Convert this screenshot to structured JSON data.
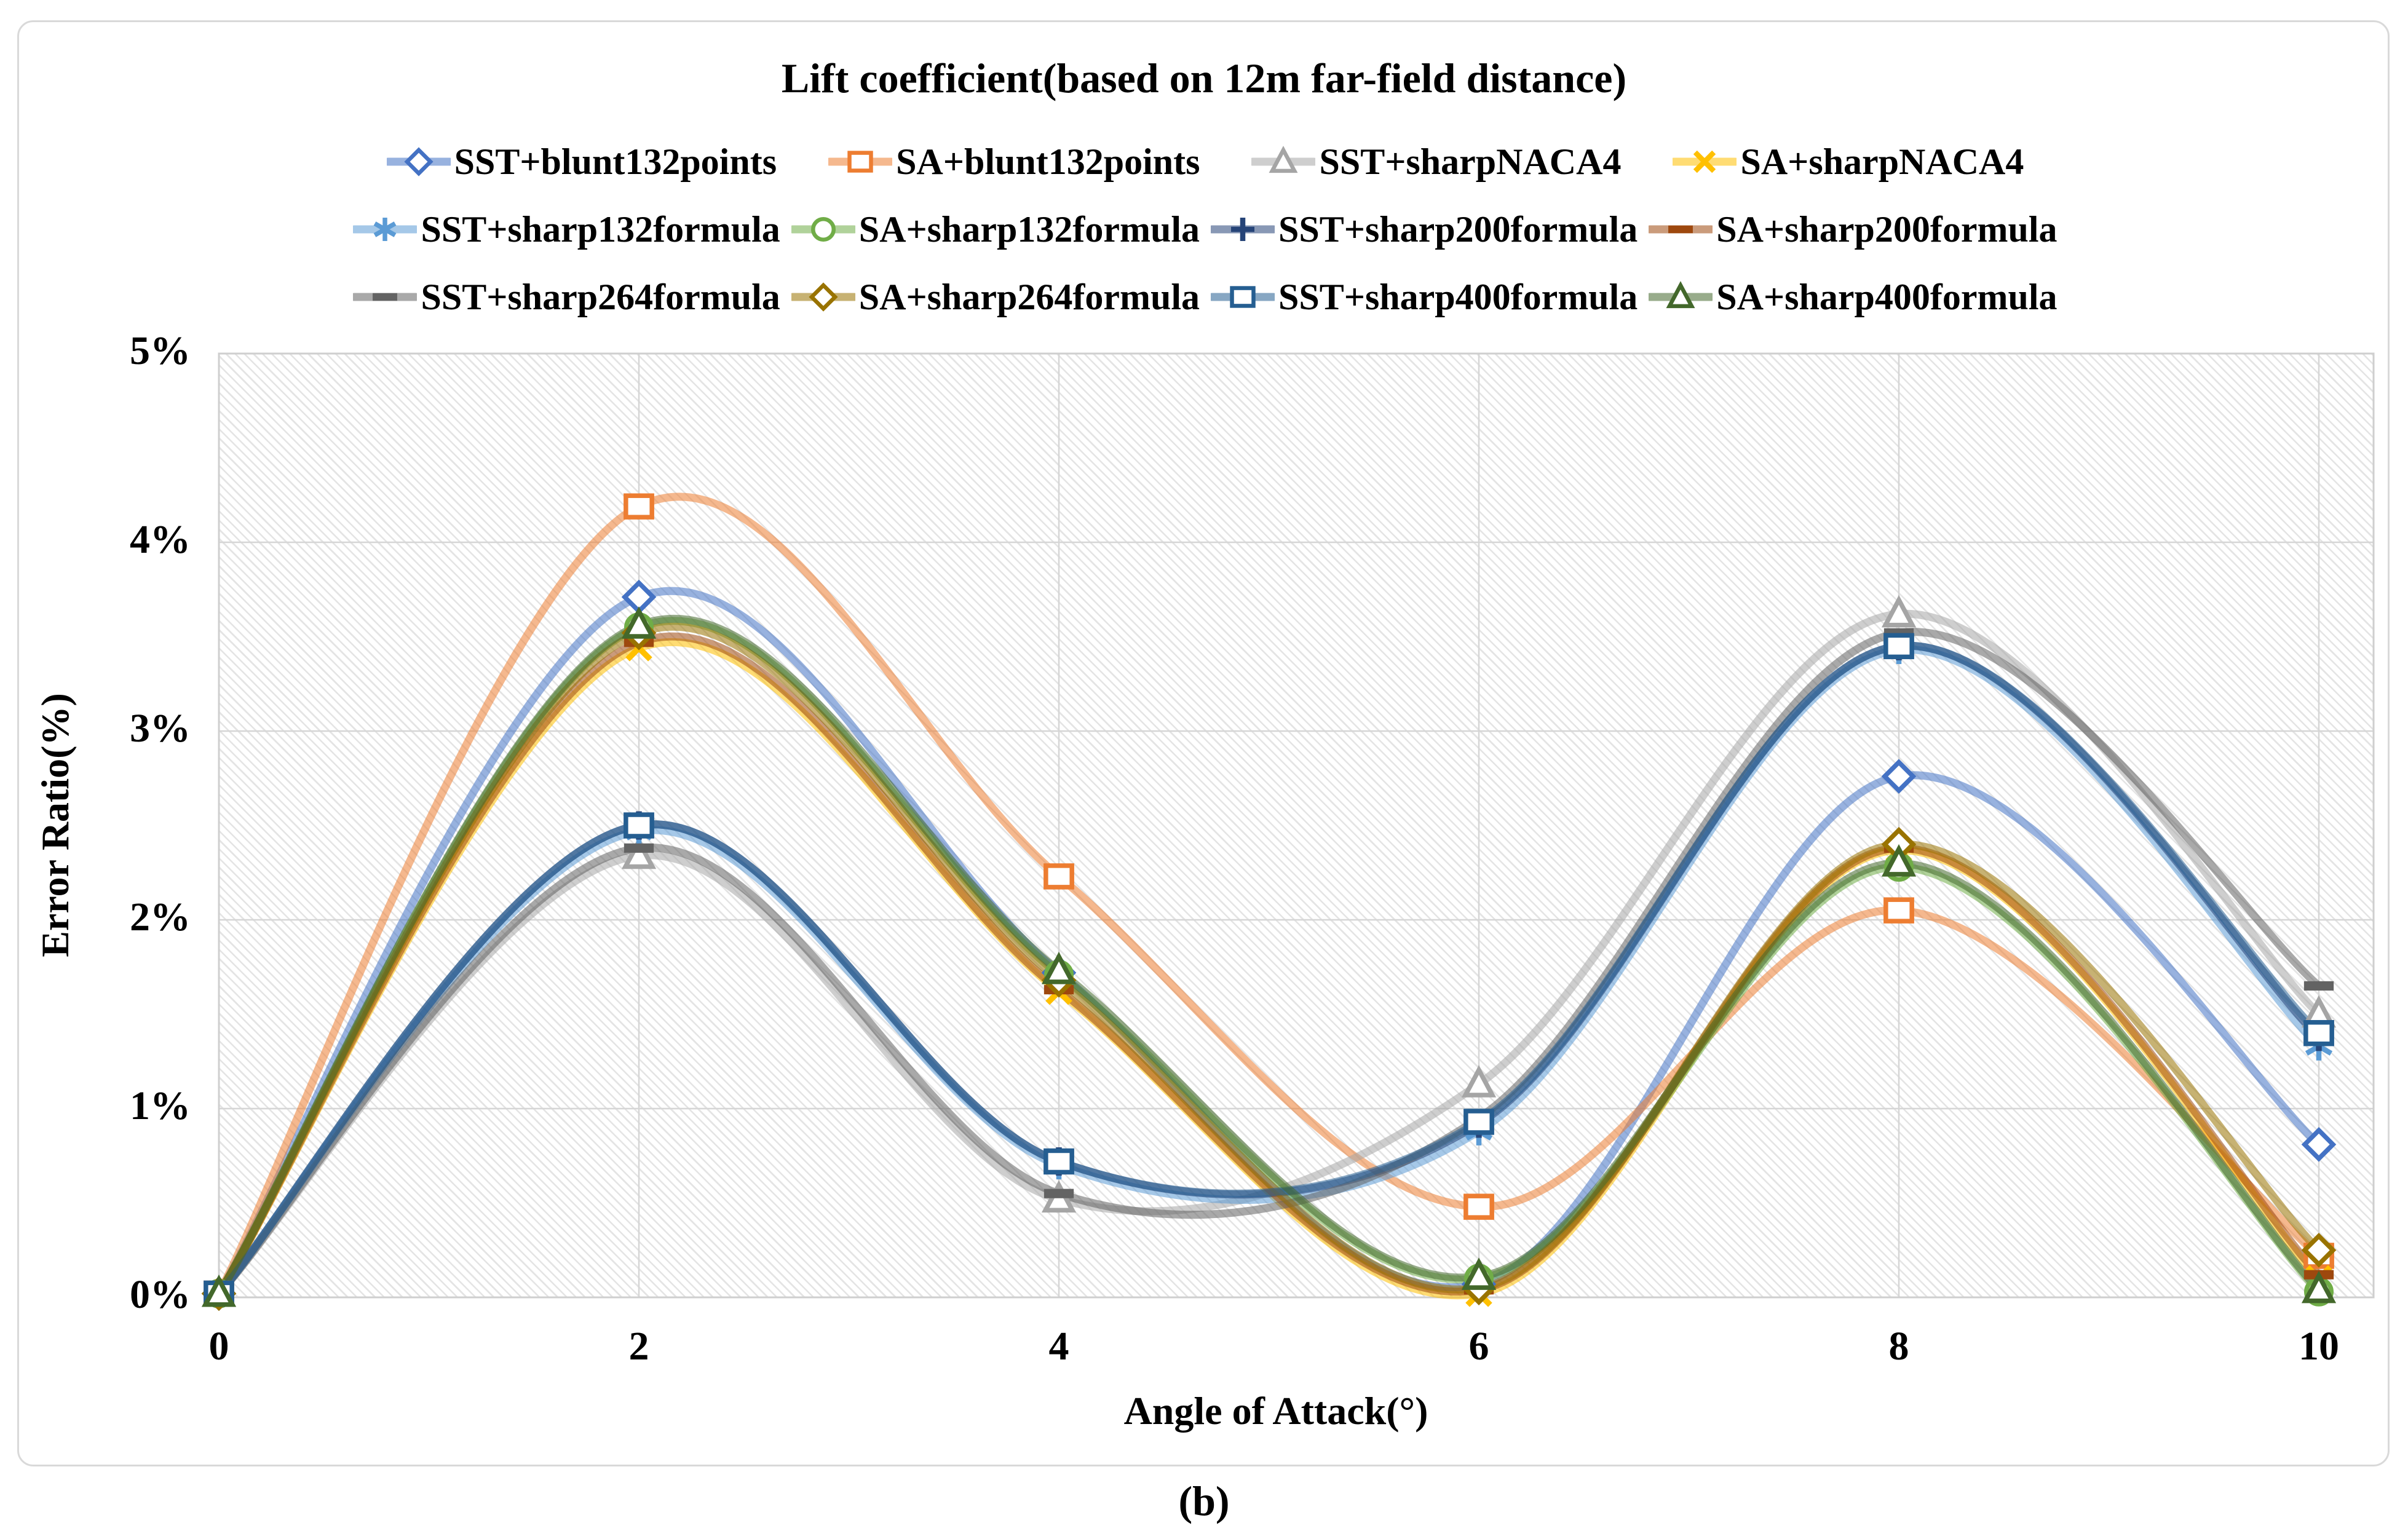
{
  "figure": {
    "title": "Lift coefficient(based on 12m far-field distance)",
    "caption": "(b)"
  },
  "x_axis": {
    "title": "Angle of Attack(°)",
    "tick_labels": [
      "0",
      "2",
      "4",
      "6",
      "8",
      "10"
    ],
    "tick_values": [
      0,
      2,
      4,
      6,
      8,
      10
    ]
  },
  "y_axis": {
    "title": "Error Ratio(%)",
    "tick_labels": [
      "0%",
      "1%",
      "2%",
      "3%",
      "4%",
      "5%"
    ],
    "tick_values": [
      0,
      1,
      2,
      3,
      4,
      5
    ]
  },
  "style": {
    "gridline_color": "#d6d6d6",
    "plot_border_color": "#cfcfcf",
    "chart_border_color": "#d9d9d9",
    "line_opacity": 0.55,
    "line_width": 13
  },
  "chart_data": {
    "type": "line",
    "smooth": true,
    "title": "Lift coefficient(based on 12m far-field distance)",
    "xlabel": "Angle of Attack(°)",
    "ylabel": "Error Ratio(%)",
    "x": [
      0,
      2,
      4,
      6,
      8,
      10
    ],
    "xlim": [
      0,
      10
    ],
    "ylim": [
      0,
      5
    ],
    "y_unit": "%",
    "grid": true,
    "plot_background": "diagonal-hatch",
    "legend_position": "top",
    "legend_columns": 4,
    "series": [
      {
        "name": "SST+blunt132points",
        "marker": "diamond",
        "color": "#4472C4",
        "values": [
          0.02,
          3.71,
          1.72,
          0.07,
          2.76,
          0.81
        ]
      },
      {
        "name": "SA+blunt132points",
        "marker": "square",
        "color": "#ED7D31",
        "values": [
          0.02,
          4.19,
          2.23,
          0.48,
          2.05,
          0.22
        ]
      },
      {
        "name": "SST+sharpNACA4",
        "marker": "triangle",
        "color": "#A5A5A5",
        "values": [
          0.02,
          2.34,
          0.52,
          1.13,
          3.62,
          1.5
        ]
      },
      {
        "name": "SA+sharpNACA4",
        "marker": "x",
        "color": "#FFC000",
        "values": [
          0.02,
          3.44,
          1.62,
          0.02,
          2.37,
          0.1
        ]
      },
      {
        "name": "SST+sharp132formula",
        "marker": "asterisk",
        "color": "#5B9BD5",
        "values": [
          0.02,
          2.47,
          0.7,
          0.88,
          3.43,
          1.33
        ]
      },
      {
        "name": "SA+sharp132formula",
        "marker": "circle",
        "color": "#70AD47",
        "values": [
          0.02,
          3.55,
          1.71,
          0.1,
          2.28,
          0.03
        ]
      },
      {
        "name": "SST+sharp200formula",
        "marker": "plus",
        "color": "#264478",
        "values": [
          0.02,
          2.5,
          0.72,
          0.92,
          3.45,
          1.38
        ]
      },
      {
        "name": "SA+sharp200formula",
        "marker": "dash",
        "color": "#9E480E",
        "values": [
          0.02,
          3.47,
          1.63,
          0.04,
          2.38,
          0.12
        ]
      },
      {
        "name": "SST+sharp264formula",
        "marker": "dash",
        "color": "#636363",
        "values": [
          0.02,
          2.38,
          0.55,
          0.95,
          3.52,
          1.65
        ]
      },
      {
        "name": "SA+sharp264formula",
        "marker": "diamond",
        "color": "#997300",
        "values": [
          0.02,
          3.52,
          1.68,
          0.05,
          2.4,
          0.25
        ]
      },
      {
        "name": "SST+sharp400formula",
        "marker": "square",
        "color": "#255E91",
        "values": [
          0.02,
          2.5,
          0.72,
          0.93,
          3.45,
          1.4
        ]
      },
      {
        "name": "SA+sharp400formula",
        "marker": "triangle",
        "color": "#43682B",
        "values": [
          0.02,
          3.56,
          1.73,
          0.11,
          2.3,
          0.04
        ]
      }
    ]
  }
}
